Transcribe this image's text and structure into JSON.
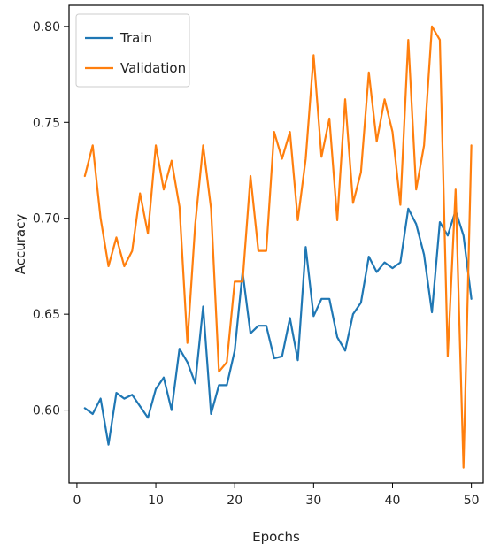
{
  "chart_data": {
    "type": "line",
    "xlabel": "Epochs",
    "ylabel": "Accuracy",
    "xlim": [
      -1,
      51.5
    ],
    "ylim": [
      0.562,
      0.811
    ],
    "xticks": [
      0,
      10,
      20,
      30,
      40,
      50
    ],
    "yticks": [
      0.6,
      0.65,
      0.7,
      0.75,
      0.8
    ],
    "legend_position": "top-left",
    "grid": false,
    "x": [
      1,
      2,
      3,
      4,
      5,
      6,
      7,
      8,
      9,
      10,
      11,
      12,
      13,
      14,
      15,
      16,
      17,
      18,
      19,
      20,
      21,
      22,
      23,
      24,
      25,
      26,
      27,
      28,
      29,
      30,
      31,
      32,
      33,
      34,
      35,
      36,
      37,
      38,
      39,
      40,
      41,
      42,
      43,
      44,
      45,
      46,
      47,
      48,
      49,
      50
    ],
    "series": [
      {
        "name": "Train",
        "color": "#1f77b4",
        "values": [
          0.601,
          0.598,
          0.606,
          0.582,
          0.609,
          0.606,
          0.608,
          0.602,
          0.596,
          0.611,
          0.617,
          0.6,
          0.632,
          0.625,
          0.614,
          0.654,
          0.598,
          0.613,
          0.613,
          0.631,
          0.672,
          0.64,
          0.644,
          0.644,
          0.627,
          0.628,
          0.648,
          0.626,
          0.685,
          0.649,
          0.658,
          0.658,
          0.638,
          0.631,
          0.65,
          0.656,
          0.68,
          0.672,
          0.677,
          0.674,
          0.677,
          0.705,
          0.697,
          0.681,
          0.651,
          0.698,
          0.691,
          0.704,
          0.691,
          0.658
        ]
      },
      {
        "name": "Validation",
        "color": "#ff7f0e",
        "values": [
          0.722,
          0.738,
          0.7,
          0.675,
          0.69,
          0.675,
          0.683,
          0.713,
          0.692,
          0.738,
          0.715,
          0.73,
          0.706,
          0.635,
          0.697,
          0.738,
          0.705,
          0.62,
          0.625,
          0.667,
          0.667,
          0.722,
          0.683,
          0.683,
          0.745,
          0.731,
          0.745,
          0.699,
          0.731,
          0.785,
          0.732,
          0.752,
          0.699,
          0.762,
          0.708,
          0.724,
          0.776,
          0.74,
          0.762,
          0.745,
          0.707,
          0.793,
          0.715,
          0.738,
          0.8,
          0.793,
          0.628,
          0.715,
          0.57,
          0.738
        ]
      }
    ]
  }
}
